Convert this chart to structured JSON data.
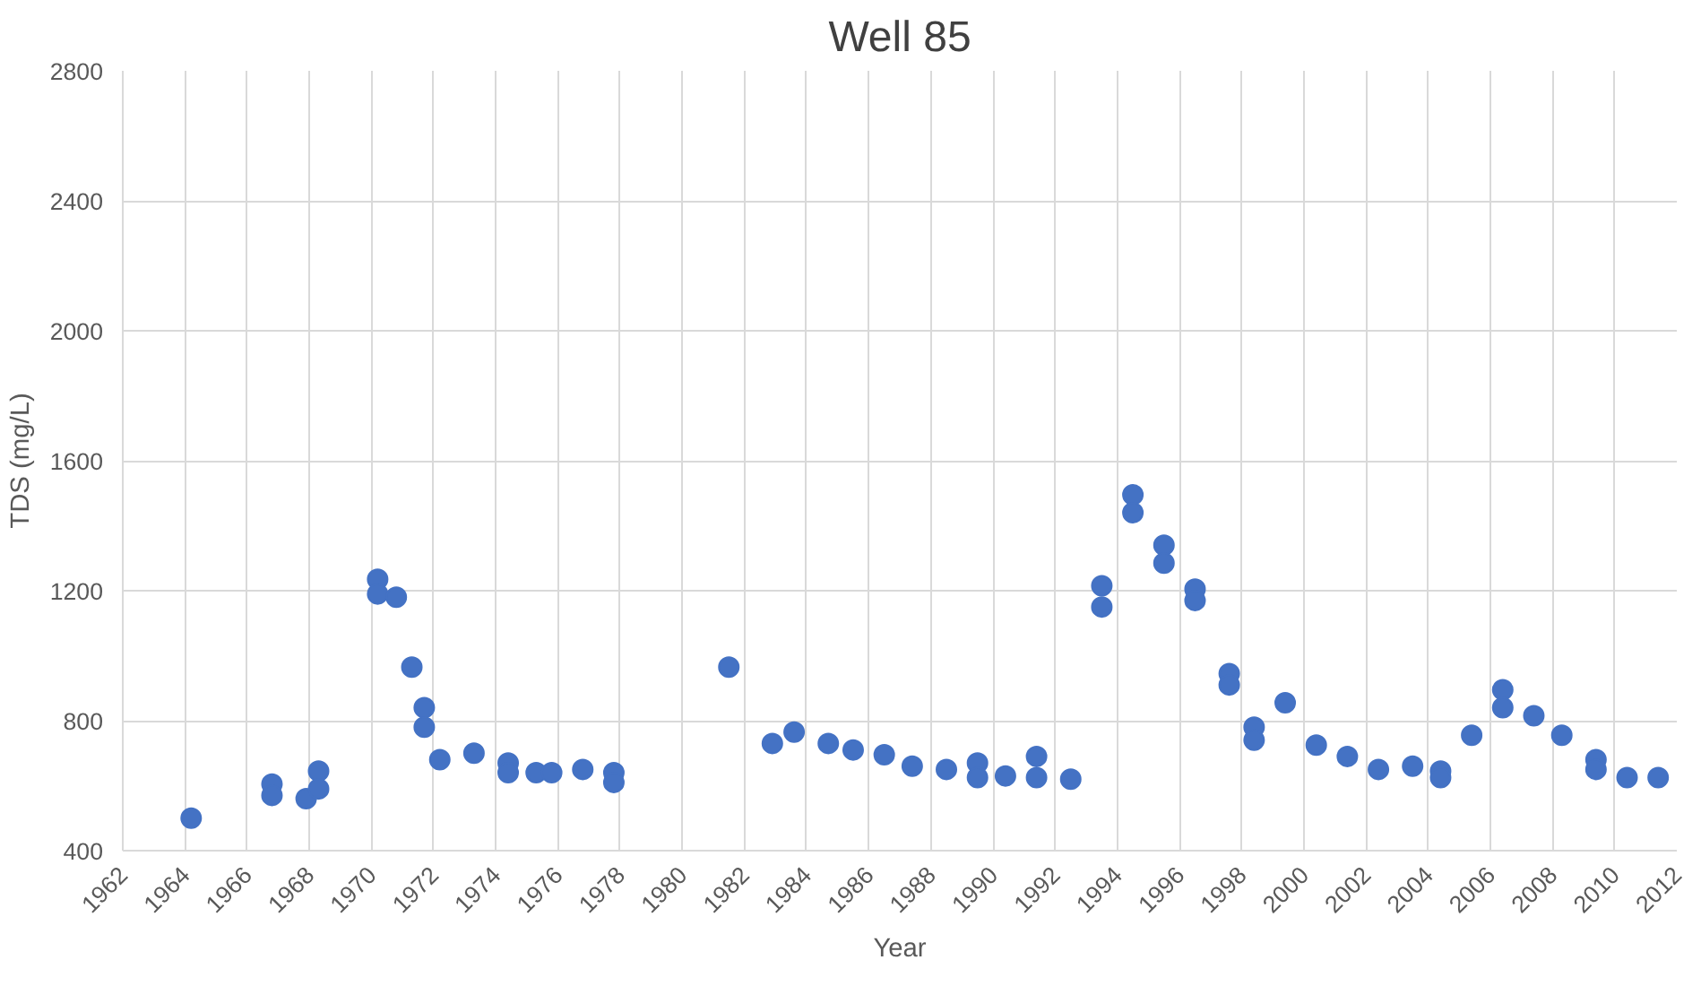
{
  "chart_data": {
    "type": "scatter",
    "title": "Well 85",
    "xlabel": "Year",
    "ylabel": "TDS (mg/L)",
    "x": [
      1964.2,
      1966.8,
      1966.8,
      1967.9,
      1968.3,
      1968.3,
      1970.2,
      1970.2,
      1970.8,
      1971.3,
      1971.7,
      1971.7,
      1972.2,
      1973.3,
      1974.4,
      1974.4,
      1975.3,
      1975.8,
      1976.8,
      1977.8,
      1977.8,
      1981.5,
      1982.9,
      1983.6,
      1984.7,
      1985.5,
      1986.5,
      1987.4,
      1988.5,
      1989.5,
      1989.5,
      1990.4,
      1991.4,
      1991.4,
      1992.5,
      1993.5,
      1993.5,
      1994.5,
      1994.5,
      1995.5,
      1995.5,
      1996.5,
      1996.5,
      1997.6,
      1997.6,
      1998.4,
      1998.4,
      1999.4,
      2000.4,
      2001.4,
      2002.4,
      2003.5,
      2004.4,
      2004.4,
      2005.4,
      2006.4,
      2006.4,
      2007.4,
      2008.3,
      2009.4,
      2009.4,
      2010.4,
      2011.4
    ],
    "values": [
      500,
      605,
      570,
      560,
      645,
      590,
      1235,
      1190,
      1180,
      965,
      840,
      780,
      680,
      700,
      670,
      640,
      640,
      640,
      650,
      640,
      610,
      965,
      730,
      765,
      730,
      710,
      695,
      660,
      650,
      670,
      625,
      630,
      690,
      625,
      620,
      1215,
      1150,
      1495,
      1440,
      1340,
      1285,
      1205,
      1170,
      945,
      910,
      780,
      740,
      855,
      725,
      690,
      650,
      660,
      645,
      625,
      755,
      895,
      840,
      815,
      755,
      680,
      650,
      625,
      625
    ],
    "color": "#4472c4",
    "marker": "circle",
    "xlim": [
      1962,
      2012
    ],
    "xticks": [
      1962,
      1964,
      1966,
      1968,
      1970,
      1972,
      1974,
      1976,
      1978,
      1980,
      1982,
      1984,
      1986,
      1988,
      1990,
      1992,
      1994,
      1996,
      1998,
      2000,
      2002,
      2004,
      2006,
      2008,
      2010,
      2012
    ],
    "ylim": [
      400,
      2800
    ],
    "yticks": [
      400,
      800,
      1200,
      1600,
      2000,
      2400,
      2800
    ],
    "grid": true
  }
}
